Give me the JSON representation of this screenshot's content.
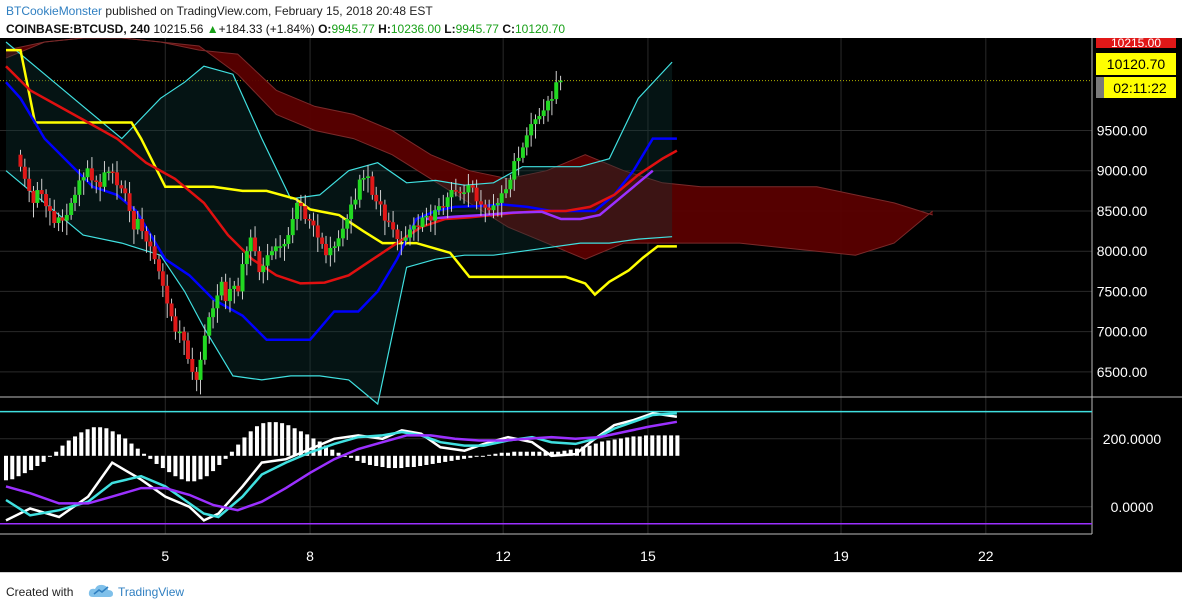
{
  "header": {
    "author": "BTCookieMonster",
    "published_text": "published on TradingView.com, February 15, 2018 20:48 EST",
    "symbol": "COINBASE:BTCUSD, 240",
    "last_price": "10215.56",
    "change": "+184.33 (+1.84%)",
    "o_label": "O:",
    "o_value": "9945.77",
    "h_label": "H:",
    "h_value": "10236.00",
    "l_label": "L:",
    "l_value": "9945.77",
    "c_label": "C:",
    "c_value": "10120.70"
  },
  "price_tags": {
    "top_partial": "10215.00",
    "close": "10120.70",
    "countdown": "02:11:22"
  },
  "footer": {
    "created_with": "Created with",
    "brand": "TradingView"
  },
  "colors": {
    "background": "#000000",
    "bullish": "#22d922",
    "bearish": "#e01818",
    "cloud_bear": "#5a0000",
    "band_line": "#40e0e0",
    "conversion": "#ffff00",
    "base": "#0000ff",
    "ma_red": "#e01010",
    "purple": "#9b30ff"
  },
  "chart_data": [
    {
      "type": "candlestick",
      "title": "",
      "x_ticks": [
        "5",
        "8",
        "12",
        "15",
        "19",
        "22"
      ],
      "x_tick_days": [
        5,
        8,
        12,
        15,
        19,
        22
      ],
      "xlim_days": [
        1.7,
        24.2
      ],
      "y_ticks": [
        "6500.00",
        "7000.00",
        "7500.00",
        "8000.00",
        "8500.00",
        "9000.00",
        "9500.00"
      ],
      "ylim": [
        6200,
        10650
      ],
      "candles_t": [
        2.0,
        2.09,
        2.18,
        2.27,
        2.35,
        2.44,
        2.53,
        2.61,
        2.7,
        2.79,
        2.87,
        2.96,
        3.05,
        3.13,
        3.22,
        3.31,
        3.39,
        3.48,
        3.57,
        3.65,
        3.74,
        3.83,
        3.91,
        4.0,
        4.09,
        4.17,
        4.26,
        4.35,
        4.43,
        4.52,
        4.61,
        4.69,
        4.78,
        4.87,
        4.95,
        5.04,
        5.13,
        5.21,
        5.3,
        5.39,
        5.47,
        5.56,
        5.65,
        5.73,
        5.82,
        5.91,
        5.99,
        6.08,
        6.17,
        6.25,
        6.34,
        6.43,
        6.51,
        6.6,
        6.69,
        6.77,
        6.86,
        6.95,
        7.03,
        7.12,
        7.21,
        7.29,
        7.38,
        7.47,
        7.55,
        7.64,
        7.73,
        7.81,
        7.9,
        7.99,
        8.07,
        8.16,
        8.25,
        8.33,
        8.42,
        8.51,
        8.59,
        8.68,
        8.77,
        8.85,
        8.94,
        9.03,
        9.11,
        9.2,
        9.29,
        9.37,
        9.46,
        9.55,
        9.63,
        9.72,
        9.81,
        9.89,
        9.98,
        10.07,
        10.15,
        10.24,
        10.33,
        10.41,
        10.5,
        10.59,
        10.67,
        10.76,
        10.85,
        10.93,
        11.02,
        11.11,
        11.19,
        11.28,
        11.37,
        11.45,
        11.54,
        11.63,
        11.71,
        11.8,
        11.89,
        11.97,
        12.06,
        12.15,
        12.23,
        12.32,
        12.41,
        12.49,
        12.58,
        12.67,
        12.75,
        12.84,
        12.93,
        13.01,
        13.1,
        13.19,
        13.27,
        13.36,
        13.45,
        13.53,
        13.62,
        13.71,
        13.79,
        13.88,
        13.97,
        14.05,
        14.14,
        14.23,
        14.31,
        14.4,
        14.49,
        14.57,
        14.66,
        14.75,
        14.83,
        14.92,
        15.01,
        15.09,
        15.18,
        15.27,
        15.35,
        15.44,
        15.53,
        15.61
      ],
      "candles_open": [
        9200,
        9050,
        8900,
        8750,
        8600,
        8760,
        8710,
        8560,
        8500,
        8350,
        8420,
        8380,
        8450,
        8600,
        8700,
        8880,
        8920,
        9030,
        8880,
        8860,
        8800,
        8980,
        8990,
        8980,
        8820,
        8780,
        8720,
        8500,
        8270,
        8400,
        8250,
        8120,
        8060,
        7900,
        7750,
        7570,
        7350,
        7190,
        7000,
        7000,
        6890,
        6660,
        6500,
        6400,
        6650,
        6950,
        7180,
        7290,
        7450,
        7620,
        7380,
        7530,
        7570,
        7500,
        7840,
        8000,
        8170,
        8000,
        7740,
        7820,
        7950,
        8000,
        8060,
        8060,
        8090,
        8200,
        8400,
        8600,
        8560,
        8400,
        8380,
        8320,
        8170,
        8090,
        7950,
        8040,
        8060,
        8160,
        8280,
        8400,
        8580,
        8640,
        8890,
        8910,
        8930,
        8700,
        8620,
        8580,
        8380,
        8360,
        8270,
        8150,
        8130,
        8170,
        8270,
        8320,
        8300,
        8420,
        8440,
        8380,
        8510,
        8560,
        8550,
        8670,
        8760,
        8740,
        8730,
        8730,
        8820,
        8790,
        8620,
        8580,
        8540,
        8510,
        8570,
        8600,
        8720,
        8770,
        8890,
        9120,
        9160,
        9290,
        9440,
        9580,
        9640,
        9680,
        9750,
        9870,
        9890,
        10100
      ],
      "candles_close": [
        9050,
        8900,
        8750,
        8600,
        8760,
        8710,
        8560,
        8500,
        8350,
        8420,
        8380,
        8450,
        8600,
        8700,
        8880,
        8920,
        9030,
        8880,
        8860,
        8800,
        8980,
        8990,
        8980,
        8820,
        8780,
        8720,
        8500,
        8270,
        8400,
        8250,
        8120,
        8060,
        7900,
        7750,
        7570,
        7350,
        7190,
        7000,
        7000,
        6890,
        6660,
        6500,
        6400,
        6650,
        6950,
        7180,
        7290,
        7450,
        7620,
        7380,
        7530,
        7570,
        7500,
        7840,
        8000,
        8170,
        8000,
        7740,
        7820,
        7950,
        8000,
        8060,
        8060,
        8090,
        8200,
        8400,
        8600,
        8560,
        8400,
        8380,
        8320,
        8170,
        8090,
        7950,
        8040,
        8060,
        8160,
        8280,
        8400,
        8580,
        8640,
        8890,
        8910,
        8930,
        8700,
        8620,
        8580,
        8380,
        8360,
        8270,
        8150,
        8130,
        8170,
        8270,
        8320,
        8300,
        8420,
        8440,
        8380,
        8510,
        8560,
        8550,
        8670,
        8760,
        8740,
        8730,
        8730,
        8820,
        8790,
        8620,
        8580,
        8540,
        8510,
        8570,
        8600,
        8720,
        8770,
        8890,
        9120,
        9160,
        9290,
        9440,
        9580,
        9640,
        9680,
        9750,
        9870,
        9890,
        10100,
        10120
      ]
    },
    {
      "type": "line",
      "title": "",
      "y_ticks": [
        "0.0000",
        "200.0000"
      ],
      "ylim": [
        -80,
        320
      ],
      "series": [
        {
          "color": "#ffffff",
          "t": [
            1.7,
            2.2,
            2.8,
            3.4,
            3.9,
            4.5,
            5.0,
            5.5,
            5.8,
            6.1,
            6.6,
            7.0,
            7.5,
            8.0,
            8.5,
            9.0,
            9.5,
            9.9,
            10.3,
            10.7,
            11.2,
            11.6,
            12.1,
            12.6,
            13.0,
            13.5,
            13.9,
            14.3,
            14.7,
            15.1,
            15.6
          ],
          "v": [
            -40,
            -5,
            -30,
            30,
            130,
            80,
            30,
            0,
            -40,
            -20,
            60,
            130,
            140,
            170,
            200,
            210,
            200,
            225,
            215,
            175,
            165,
            185,
            205,
            190,
            150,
            155,
            200,
            240,
            255,
            275,
            265
          ]
        },
        {
          "color": "#40e0e0",
          "t": [
            1.7,
            2.2,
            2.8,
            3.4,
            3.9,
            4.5,
            5.0,
            5.5,
            5.8,
            6.1,
            6.6,
            7.0,
            7.5,
            8.0,
            8.5,
            9.0,
            9.5,
            9.9,
            10.3,
            10.7,
            11.2,
            11.6,
            12.1,
            12.6,
            13.0,
            13.5,
            13.9,
            14.3,
            14.7,
            15.1,
            15.6
          ],
          "v": [
            20,
            -25,
            -10,
            15,
            70,
            90,
            60,
            10,
            -20,
            -30,
            30,
            95,
            130,
            160,
            185,
            205,
            210,
            220,
            210,
            190,
            180,
            180,
            195,
            205,
            190,
            185,
            200,
            230,
            250,
            270,
            275
          ]
        },
        {
          "color": "#9b30ff",
          "t": [
            1.7,
            2.2,
            2.8,
            3.4,
            3.9,
            4.5,
            5.0,
            5.5,
            6.0,
            6.5,
            7.0,
            7.5,
            8.0,
            8.5,
            9.0,
            9.5,
            10.0,
            10.5,
            11.0,
            11.5,
            12.0,
            12.5,
            13.0,
            13.5,
            14.0,
            14.5,
            15.0,
            15.6
          ],
          "v": [
            60,
            40,
            10,
            10,
            30,
            55,
            55,
            35,
            5,
            -10,
            15,
            55,
            100,
            140,
            170,
            190,
            210,
            210,
            200,
            195,
            195,
            200,
            205,
            200,
            205,
            220,
            235,
            250
          ]
        }
      ],
      "histogram_t": [
        1.7,
        1.83,
        1.96,
        2.09,
        2.22,
        2.35,
        2.48,
        2.61,
        2.74,
        2.87,
        3.0,
        3.13,
        3.26,
        3.39,
        3.52,
        3.65,
        3.78,
        3.91,
        4.04,
        4.17,
        4.3,
        4.43,
        4.56,
        4.69,
        4.82,
        4.95,
        5.08,
        5.21,
        5.34,
        5.47,
        5.6,
        5.73,
        5.86,
        5.99,
        6.12,
        6.25,
        6.38,
        6.51,
        6.64,
        6.77,
        6.9,
        7.03,
        7.16,
        7.29,
        7.42,
        7.55,
        7.68,
        7.81,
        7.94,
        8.07,
        8.2,
        8.33,
        8.46,
        8.59,
        8.72,
        8.85,
        8.98,
        9.11,
        9.24,
        9.37,
        9.5,
        9.63,
        9.76,
        9.89,
        10.02,
        10.15,
        10.28,
        10.41,
        10.54,
        10.67,
        10.8,
        10.93,
        11.06,
        11.19,
        11.32,
        11.45,
        11.58,
        11.71,
        11.84,
        11.97,
        12.1,
        12.23,
        12.36,
        12.49,
        12.62,
        12.75,
        12.88,
        13.01,
        13.14,
        13.27,
        13.4,
        13.53,
        13.66,
        13.79,
        13.92,
        14.05,
        14.18,
        14.31,
        14.44,
        14.57,
        14.7,
        14.83,
        14.96,
        15.09,
        15.22,
        15.35,
        15.48,
        15.61
      ],
      "histogram_v": [
        -24,
        -23,
        -20,
        -17,
        -14,
        -10,
        -6,
        -1,
        4,
        10,
        15,
        19,
        23,
        26,
        28,
        28,
        27,
        24,
        21,
        17,
        12,
        7,
        2,
        -3,
        -8,
        -12,
        -16,
        -20,
        -23,
        -25,
        -25,
        -23,
        -20,
        -15,
        -9,
        -3,
        4,
        11,
        18,
        24,
        29,
        32,
        33,
        33,
        32,
        30,
        27,
        24,
        21,
        17,
        14,
        10,
        6,
        3,
        0,
        -2,
        -5,
        -7,
        -9,
        -10,
        -11,
        -12,
        -12,
        -12,
        -11,
        -11,
        -10,
        -9,
        -8,
        -7,
        -6,
        -5,
        -4,
        -3,
        -2,
        -1,
        0,
        1,
        2,
        3,
        3,
        4,
        4,
        4,
        4,
        4,
        4,
        4,
        4,
        5,
        6,
        7,
        9,
        10,
        12,
        14,
        15,
        16,
        17,
        18,
        19,
        19,
        20,
        20,
        20,
        20,
        20,
        20
      ]
    }
  ]
}
